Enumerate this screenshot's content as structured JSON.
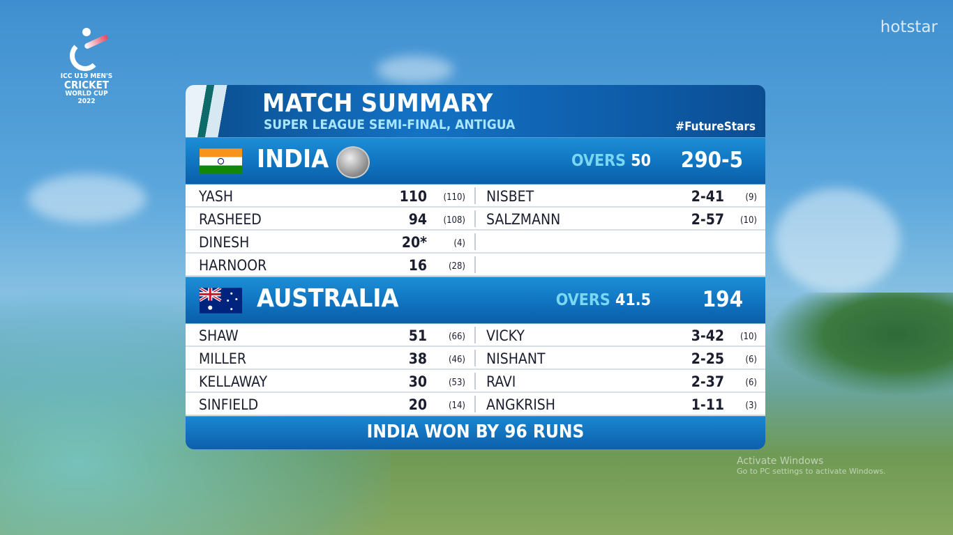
{
  "logo": {
    "line1": "ICC U19 MEN'S",
    "line2": "CRICKET",
    "line3": "WORLD CUP",
    "line4": "2022"
  },
  "broadcaster": "hotstar",
  "watermark": {
    "line1": "Activate Windows",
    "line2": "Go to PC settings to activate Windows."
  },
  "header": {
    "title": "MATCH SUMMARY",
    "subtitle": "SUPER LEAGUE SEMI-FINAL, ANTIGUA",
    "hashtag": "#FutureStars"
  },
  "innings": [
    {
      "team": "INDIA",
      "overs_label": "OVERS",
      "overs": "50",
      "score": "290-5",
      "batting": [
        {
          "name": "YASH",
          "runs": "110",
          "balls": "(110)"
        },
        {
          "name": "RASHEED",
          "runs": "94",
          "balls": "(108)"
        },
        {
          "name": "DINESH",
          "runs": "20*",
          "balls": "(4)"
        },
        {
          "name": "HARNOOR",
          "runs": "16",
          "balls": "(28)"
        }
      ],
      "bowling": [
        {
          "name": "NISBET",
          "figures": "2-41",
          "overs": "(9)"
        },
        {
          "name": "SALZMANN",
          "figures": "2-57",
          "overs": "(10)"
        },
        {
          "name": "",
          "figures": "",
          "overs": ""
        },
        {
          "name": "",
          "figures": "",
          "overs": ""
        }
      ]
    },
    {
      "team": "AUSTRALIA",
      "overs_label": "OVERS",
      "overs": "41.5",
      "score": "194",
      "batting": [
        {
          "name": "SHAW",
          "runs": "51",
          "balls": "(66)"
        },
        {
          "name": "MILLER",
          "runs": "38",
          "balls": "(46)"
        },
        {
          "name": "KELLAWAY",
          "runs": "30",
          "balls": "(53)"
        },
        {
          "name": "SINFIELD",
          "runs": "20",
          "balls": "(14)"
        }
      ],
      "bowling": [
        {
          "name": "VICKY",
          "figures": "3-42",
          "overs": "(10)"
        },
        {
          "name": "NISHANT",
          "figures": "2-25",
          "overs": "(6)"
        },
        {
          "name": "RAVI",
          "figures": "2-37",
          "overs": "(6)"
        },
        {
          "name": "ANGKRISH",
          "figures": "1-11",
          "overs": "(3)"
        }
      ]
    }
  ],
  "result": "INDIA WON BY 96 RUNS"
}
